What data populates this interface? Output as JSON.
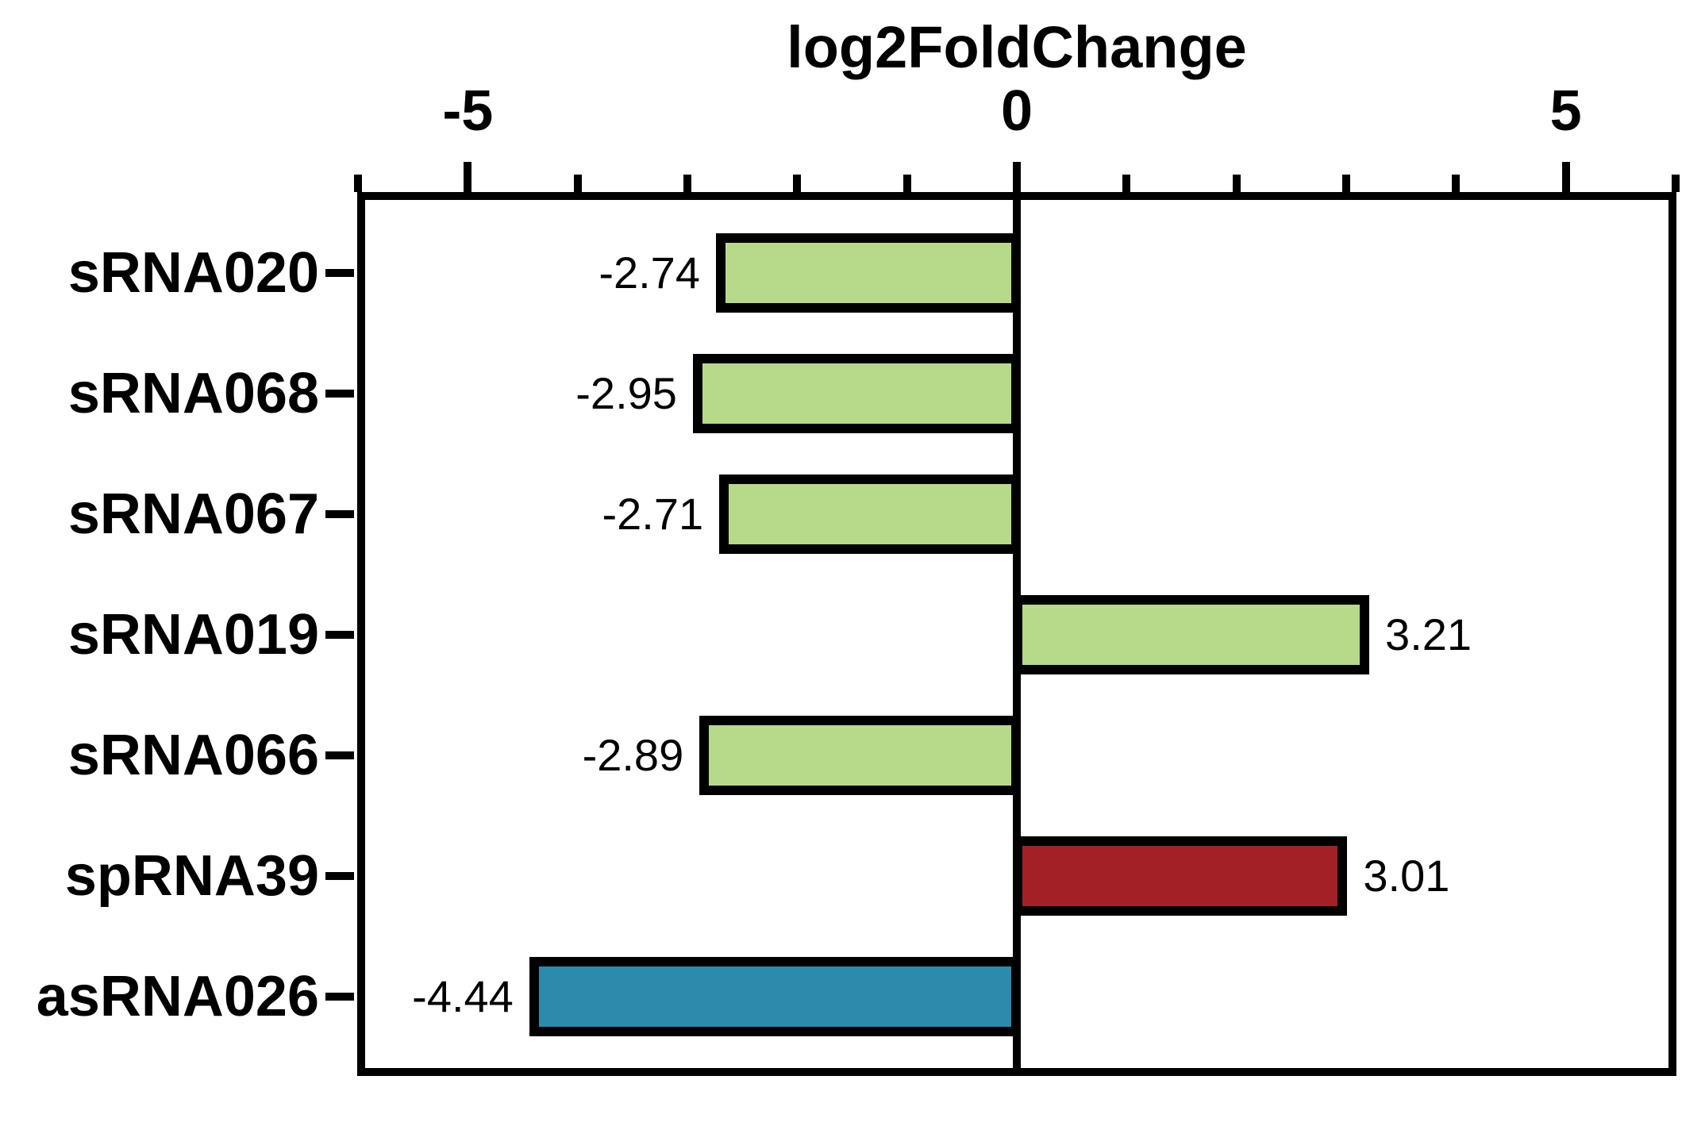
{
  "chart_data": {
    "type": "bar",
    "orientation": "horizontal",
    "title": "log2FoldChange",
    "categories": [
      "sRNA020",
      "sRNA068",
      "sRNA067",
      "sRNA019",
      "sRNA066",
      "spRNA39",
      "asRNA026"
    ],
    "values": [
      -2.74,
      -2.95,
      -2.71,
      3.21,
      -2.89,
      3.01,
      -4.44
    ],
    "value_labels": [
      "-2.74",
      "-2.95",
      "-2.71",
      "3.21",
      "-2.89",
      "3.01",
      "-4.44"
    ],
    "bar_colors": [
      "#b6da89",
      "#b6da89",
      "#b6da89",
      "#b6da89",
      "#b6da89",
      "#a32027",
      "#2c8aac"
    ],
    "bar_color_meaning": {
      "#b6da89": "green-sRNA",
      "#a32027": "red-spRNA",
      "#2c8aac": "blue-asRNA"
    },
    "xlabel": "log2FoldChange",
    "ylabel": "",
    "xlim": [
      -6,
      6
    ],
    "xticks_major": [
      -5,
      0,
      5
    ],
    "xtick_labels": [
      "-5",
      "0",
      "5"
    ],
    "xticks_minor": [
      -6,
      -4,
      -3,
      -2,
      -1,
      1,
      2,
      3,
      4,
      6
    ],
    "zero_line": true,
    "grid": false,
    "legend": "none",
    "axis_color": "#000000",
    "text_color": "#000000",
    "background": "#ffffff"
  }
}
